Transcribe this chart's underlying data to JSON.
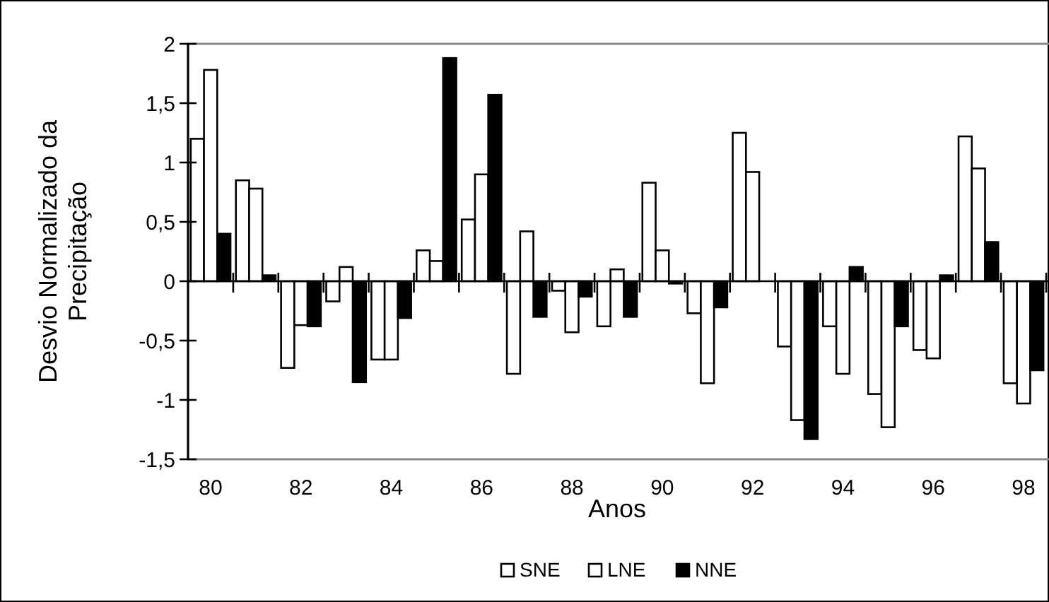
{
  "chart_data": {
    "type": "bar",
    "xlabel": "Anos",
    "ylabel": "Desvio Normalizado da Precipitação",
    "categories": [
      "80",
      null,
      "82",
      null,
      "84",
      null,
      "86",
      null,
      "88",
      null,
      "90",
      null,
      "92",
      null,
      "94",
      null,
      "96",
      null,
      "98"
    ],
    "series": [
      {
        "name": "SNE",
        "color": "#ffffff",
        "values": [
          1.2,
          0.85,
          -0.73,
          -0.17,
          -0.66,
          0.26,
          0.52,
          -0.78,
          -0.08,
          -0.38,
          0.83,
          -0.27,
          1.25,
          -0.55,
          -0.38,
          -0.95,
          -0.58,
          1.22,
          -0.86
        ]
      },
      {
        "name": "LNE",
        "color": "#ffffff",
        "values": [
          1.78,
          0.78,
          -0.37,
          0.12,
          -0.66,
          0.17,
          0.9,
          0.42,
          -0.43,
          0.1,
          0.26,
          -0.86,
          0.92,
          -1.17,
          -0.78,
          -1.23,
          -0.65,
          0.95,
          -1.03
        ]
      },
      {
        "name": "NNE",
        "color": "#000000",
        "values": [
          0.4,
          0.05,
          -0.38,
          -0.85,
          -0.31,
          1.88,
          1.57,
          -0.3,
          -0.13,
          -0.3,
          -0.02,
          -0.22,
          0,
          -1.33,
          0.12,
          -0.38,
          0.05,
          0.33,
          -0.75
        ]
      }
    ],
    "ylim": [
      -1.5,
      2
    ],
    "yticks": [
      {
        "value": -1.5,
        "label": "-1,5"
      },
      {
        "value": -1,
        "label": "-1"
      },
      {
        "value": -0.5,
        "label": "-0,5"
      },
      {
        "value": 0,
        "label": "0"
      },
      {
        "value": 0.5,
        "label": "0,5"
      },
      {
        "value": 1,
        "label": "1"
      },
      {
        "value": 1.5,
        "label": "1,5"
      },
      {
        "value": 2,
        "label": "2"
      }
    ],
    "legend": "bottom"
  }
}
